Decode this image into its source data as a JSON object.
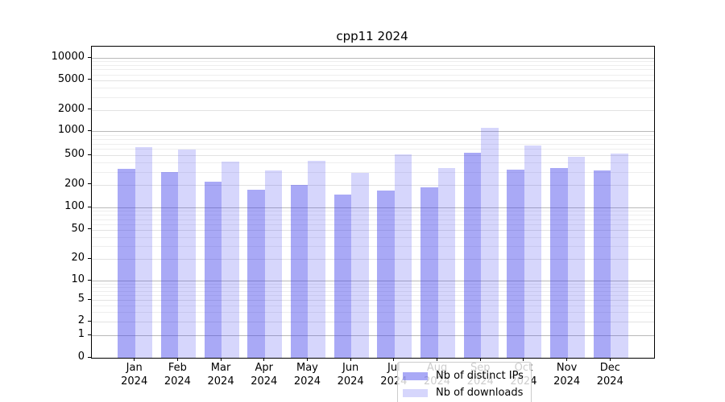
{
  "title": "cpp11 2024",
  "chart_data": {
    "type": "bar",
    "title": "cpp11 2024",
    "scale": "symlog",
    "grid": true,
    "legend_position": "lower center",
    "categories": [
      "Jan 2024",
      "Feb 2024",
      "Mar 2024",
      "Apr 2024",
      "May 2024",
      "Jun 2024",
      "Jul 2024",
      "Aug 2024",
      "Sep 2024",
      "Oct 2024",
      "Nov 2024",
      "Dec 2024"
    ],
    "x_tick_lines": [
      {
        "month": "Jan",
        "year": "2024"
      },
      {
        "month": "Feb",
        "year": "2024"
      },
      {
        "month": "Mar",
        "year": "2024"
      },
      {
        "month": "Apr",
        "year": "2024"
      },
      {
        "month": "May",
        "year": "2024"
      },
      {
        "month": "Jun",
        "year": "2024"
      },
      {
        "month": "Jul",
        "year": "2024"
      },
      {
        "month": "Aug",
        "year": "2024"
      },
      {
        "month": "Sep",
        "year": "2024"
      },
      {
        "month": "Oct",
        "year": "2024"
      },
      {
        "month": "Nov",
        "year": "2024"
      },
      {
        "month": "Dec",
        "year": "2024"
      }
    ],
    "series": [
      {
        "name": "Nb of distinct IPs",
        "color": "rgba(60,60,235,0.44)",
        "values": [
          325,
          295,
          220,
          170,
          197,
          149,
          167,
          186,
          536,
          317,
          335,
          312
        ]
      },
      {
        "name": "Nb of downloads",
        "color": "rgba(70,70,240,0.22)",
        "values": [
          640,
          586,
          411,
          315,
          421,
          288,
          511,
          338,
          1106,
          672,
          478,
          530
        ]
      }
    ],
    "yticks": [
      0,
      1,
      2,
      5,
      10,
      20,
      50,
      100,
      200,
      500,
      1000,
      2000,
      5000,
      10000
    ],
    "ylim": [
      0,
      14000
    ]
  }
}
